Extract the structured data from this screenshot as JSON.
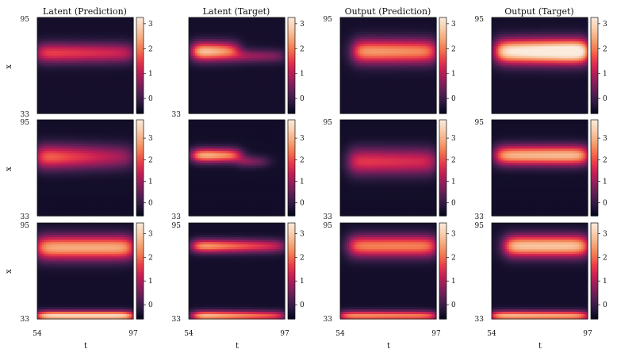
{
  "colormap": [
    "#03051a",
    "#2b1a3f",
    "#5a1f55",
    "#8e1e5b",
    "#c41e55",
    "#ea3c4a",
    "#f4774e",
    "#f6a87a",
    "#f9ceae",
    "#faebdd"
  ],
  "chart_data": {
    "type": "heatmap",
    "column_titles": [
      "Latent (Prediction)",
      "Latent (Target)",
      "Output (Prediction)",
      "Output (Target)"
    ],
    "xlabel": "t",
    "ylabel": "x",
    "x_ticks": [
      "54",
      "97"
    ],
    "y_ticks": [
      "95",
      "33"
    ],
    "x_range": [
      54,
      97
    ],
    "y_range": [
      33,
      95
    ],
    "rows": [
      {
        "colorbar_ticks": [
          "0",
          "1",
          "2",
          "3"
        ],
        "color_range": [
          -0.6,
          3.25
        ],
        "panels": [
          {
            "name": "Latent (Prediction)",
            "blobs": [
              {
                "x": [
                  54,
                  97
                ],
                "y": 72,
                "w": 4.5,
                "peak": 1.65,
                "taper": 0.25
              }
            ]
          },
          {
            "name": "Latent (Target)",
            "blobs": [
              {
                "x": [
                  56,
                  76
                ],
                "y": 73,
                "w": 4.2,
                "peak": 3.05,
                "taper": 0.3
              },
              {
                "x": [
                  76,
                  97
                ],
                "y": 70,
                "w": 3.0,
                "peak": 0.9,
                "taper": 0.3
              }
            ]
          },
          {
            "name": "Output (Prediction)",
            "blobs": [
              {
                "x": [
                  60,
                  97
                ],
                "y": 73,
                "w": 5.5,
                "peak": 2.35,
                "taper": 0.1
              }
            ]
          },
          {
            "name": "Output (Target)",
            "blobs": [
              {
                "x": [
                  56,
                  97
                ],
                "y": 73,
                "w": 5.5,
                "peak": 3.15,
                "taper": -0.25
              }
            ]
          }
        ]
      },
      {
        "colorbar_ticks": [
          "0",
          "1",
          "2",
          "3"
        ],
        "color_range": [
          -0.6,
          3.85
        ],
        "panels": [
          {
            "name": "Latent (Prediction)",
            "blobs": [
              {
                "x": [
                  54,
                  97
                ],
                "y": 71,
                "w": 5.5,
                "peak": 2.45,
                "taper": 0.55
              }
            ]
          },
          {
            "name": "Latent (Target)",
            "blobs": [
              {
                "x": [
                  56,
                  77
                ],
                "y": 72,
                "w": 3.2,
                "peak": 3.3,
                "taper": 0.25
              },
              {
                "x": [
                  77,
                  90
                ],
                "y": 68,
                "w": 2.6,
                "peak": 1.1,
                "taper": 0.5
              }
            ]
          },
          {
            "name": "Output (Prediction)",
            "blobs": [
              {
                "x": [
                  58,
                  97
                ],
                "y": 68,
                "w": 6.0,
                "peak": 1.85,
                "taper": 0.15
              }
            ]
          },
          {
            "name": "Output (Target)",
            "blobs": [
              {
                "x": [
                  56,
                  97
                ],
                "y": 72,
                "w": 4.5,
                "peak": 3.0,
                "taper": -0.05
              }
            ]
          }
        ]
      },
      {
        "colorbar_ticks": [
          "0",
          "1",
          "2",
          "3"
        ],
        "color_range": [
          -0.6,
          3.45
        ],
        "panels": [
          {
            "name": "Latent (Prediction)",
            "blobs": [
              {
                "x": [
                  54,
                  97
                ],
                "y": 79,
                "w": 5.5,
                "peak": 2.6,
                "taper": 0.0
              },
              {
                "x": [
                  54,
                  97
                ],
                "y": 35,
                "w": 2.2,
                "peak": 3.2,
                "taper": 0.0
              }
            ]
          },
          {
            "name": "Latent (Target)",
            "blobs": [
              {
                "x": [
                  56,
                  97
                ],
                "y": 80,
                "w": 3.0,
                "peak": 2.7,
                "taper": 0.5
              },
              {
                "x": [
                  56,
                  97
                ],
                "y": 35,
                "w": 2.2,
                "peak": 3.0,
                "taper": 0.4
              }
            ]
          },
          {
            "name": "Output (Prediction)",
            "blobs": [
              {
                "x": [
                  58,
                  97
                ],
                "y": 80,
                "w": 5.0,
                "peak": 2.2,
                "taper": 0.0
              },
              {
                "x": [
                  54,
                  97
                ],
                "y": 35,
                "w": 2.2,
                "peak": 2.4,
                "taper": 0.1
              }
            ]
          },
          {
            "name": "Output (Target)",
            "blobs": [
              {
                "x": [
                  60,
                  97
                ],
                "y": 80,
                "w": 5.0,
                "peak": 2.9,
                "taper": 0.0
              },
              {
                "x": [
                  54,
                  97
                ],
                "y": 35,
                "w": 2.2,
                "peak": 2.8,
                "taper": 0.1
              }
            ]
          }
        ]
      }
    ]
  }
}
